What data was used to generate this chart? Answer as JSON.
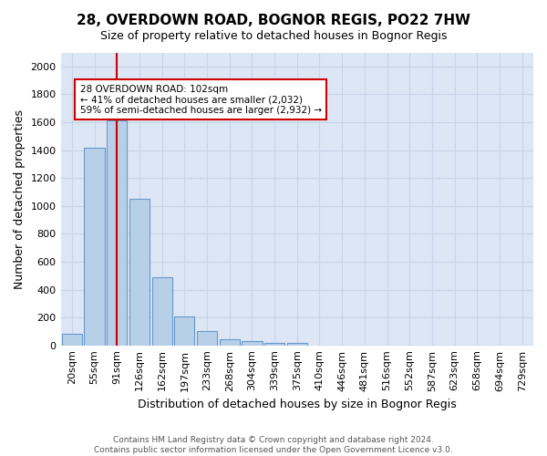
{
  "title": "28, OVERDOWN ROAD, BOGNOR REGIS, PO22 7HW",
  "subtitle": "Size of property relative to detached houses in Bognor Regis",
  "xlabel": "Distribution of detached houses by size in Bognor Regis",
  "ylabel": "Number of detached properties",
  "bar_labels": [
    "20sqm",
    "55sqm",
    "91sqm",
    "126sqm",
    "162sqm",
    "197sqm",
    "233sqm",
    "268sqm",
    "304sqm",
    "339sqm",
    "375sqm",
    "410sqm",
    "446sqm",
    "481sqm",
    "516sqm",
    "552sqm",
    "587sqm",
    "623sqm",
    "658sqm",
    "694sqm",
    "729sqm"
  ],
  "bar_values": [
    80,
    1420,
    1610,
    1050,
    490,
    205,
    105,
    42,
    30,
    20,
    15,
    0,
    0,
    0,
    0,
    0,
    0,
    0,
    0,
    0,
    0
  ],
  "bar_color": "#b8cfe8",
  "bar_edgecolor": "#6699cc",
  "grid_color": "#c8d4e8",
  "background_color": "#dce6f5",
  "vline_x": 2,
  "vline_color": "#cc0000",
  "annotation_text": "28 OVERDOWN ROAD: 102sqm\n← 41% of detached houses are smaller (2,032)\n59% of semi-detached houses are larger (2,932) →",
  "annotation_box_facecolor": "#ffffff",
  "annotation_box_edgecolor": "#cc0000",
  "ylim": [
    0,
    2100
  ],
  "yticks": [
    0,
    200,
    400,
    600,
    800,
    1000,
    1200,
    1400,
    1600,
    1800,
    2000
  ],
  "footnote": "Contains HM Land Registry data © Crown copyright and database right 2024.\nContains public sector information licensed under the Open Government Licence v3.0.",
  "title_fontsize": 11,
  "subtitle_fontsize": 9,
  "xlabel_fontsize": 9,
  "ylabel_fontsize": 9,
  "tick_fontsize": 8,
  "annot_fontsize": 7.5,
  "footnote_fontsize": 6.5
}
